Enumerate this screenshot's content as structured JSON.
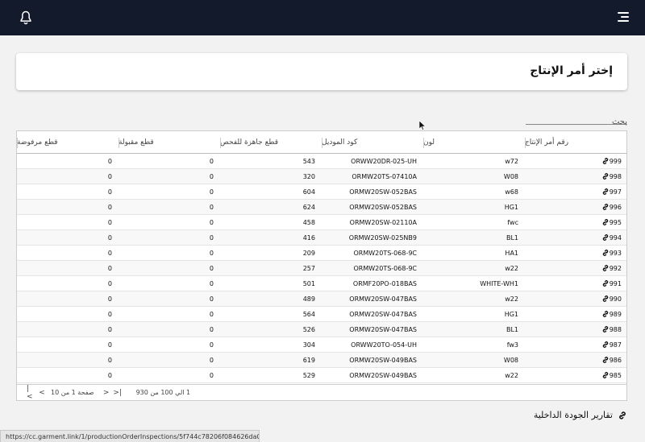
{
  "header": {
    "bell_icon": "bell-icon",
    "menu_icon": "hamburger-menu-icon"
  },
  "card": {
    "title": "إختر أمر الإنتاج"
  },
  "search": {
    "placeholder": "بحث",
    "value": ""
  },
  "table": {
    "columns": [
      "رقم أمر الإنتاج",
      "لون",
      "كود الموديل",
      "قطع جاهزة للفحص",
      "قطع مقبولة",
      "قطع مرفوضة"
    ],
    "rows": [
      [
        "999",
        "w72",
        "ORWW20DR-025-UH",
        "543",
        "0",
        "0"
      ],
      [
        "998",
        "W08",
        "ORMW20TS-07410A",
        "320",
        "0",
        "0"
      ],
      [
        "997",
        "w68",
        "ORMW20SW-052BAS",
        "604",
        "0",
        "0"
      ],
      [
        "996",
        "HG1",
        "ORMW20SW-052BAS",
        "624",
        "0",
        "0"
      ],
      [
        "995",
        "fwc",
        "ORMW20SW-02110A",
        "458",
        "0",
        "0"
      ],
      [
        "994",
        "BL1",
        "ORMW20SW-025NB9",
        "416",
        "0",
        "0"
      ],
      [
        "993",
        "HA1",
        "ORMW20TS-068-9C",
        "209",
        "0",
        "0"
      ],
      [
        "992",
        "w22",
        "ORMW20TS-068-9C",
        "257",
        "0",
        "0"
      ],
      [
        "991",
        "WHITE-WH1",
        "ORMF20PO-018BAS",
        "501",
        "0",
        "0"
      ],
      [
        "990",
        "w22",
        "ORMW20SW-047BAS",
        "489",
        "0",
        "0"
      ],
      [
        "989",
        "HG1",
        "ORMW20SW-047BAS",
        "564",
        "0",
        "0"
      ],
      [
        "988",
        "BL1",
        "ORMW20SW-047BAS",
        "526",
        "0",
        "0"
      ],
      [
        "987",
        "fw3",
        "ORWW20TO-054-UH",
        "304",
        "0",
        "0"
      ],
      [
        "986",
        "W08",
        "ORMW20SW-049BAS",
        "619",
        "0",
        "0"
      ],
      [
        "985",
        "w22",
        "ORMW20SW-049BAS",
        "529",
        "0",
        "0"
      ]
    ]
  },
  "pager": {
    "range": "1 الي 100 من 930",
    "page": "صفحة 1 من 10",
    "first": "|<",
    "prev": "<",
    "next": ">",
    "last": ">|"
  },
  "reports": {
    "label": "تقارير الجودة الداخلية"
  },
  "status_bar": {
    "url": "https://cc.garment.link/1/productionOrderInspections/5f744c78206f084626da0c..."
  }
}
